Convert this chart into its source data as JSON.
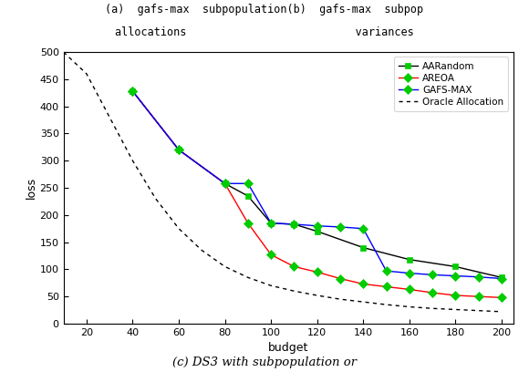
{
  "xlabel": "budget",
  "ylabel": "loss",
  "xlim": [
    10,
    205
  ],
  "ylim": [
    0,
    500
  ],
  "xticks": [
    20,
    40,
    60,
    80,
    100,
    120,
    140,
    160,
    180,
    200
  ],
  "yticks": [
    0,
    50,
    100,
    150,
    200,
    250,
    300,
    350,
    400,
    450,
    500
  ],
  "aarandom": {
    "x": [
      40,
      60,
      80,
      90,
      100,
      110,
      120,
      140,
      160,
      180,
      200
    ],
    "y": [
      428,
      320,
      258,
      235,
      185,
      183,
      170,
      140,
      118,
      105,
      85
    ],
    "color": "#000000",
    "label": "AARandom",
    "marker": "s"
  },
  "areoa": {
    "x": [
      40,
      60,
      80,
      90,
      100,
      110,
      120,
      130,
      140,
      150,
      160,
      170,
      180,
      190,
      200
    ],
    "y": [
      428,
      320,
      258,
      185,
      127,
      105,
      95,
      83,
      73,
      68,
      63,
      57,
      52,
      50,
      48
    ],
    "color": "#ff0000",
    "label": "AREOA",
    "marker": "D"
  },
  "gafsmax": {
    "x": [
      40,
      60,
      80,
      90,
      100,
      110,
      120,
      130,
      140,
      150,
      160,
      170,
      180,
      190,
      200
    ],
    "y": [
      428,
      320,
      258,
      258,
      185,
      183,
      180,
      178,
      175,
      97,
      93,
      90,
      88,
      86,
      83
    ],
    "color": "#0000ff",
    "label": "GAFS-MAX",
    "marker": "D"
  },
  "oracle": {
    "x": [
      10,
      20,
      30,
      40,
      50,
      60,
      70,
      80,
      90,
      100,
      110,
      120,
      130,
      140,
      150,
      160,
      170,
      180,
      190,
      200
    ],
    "y": [
      500,
      460,
      380,
      300,
      230,
      175,
      135,
      105,
      85,
      70,
      60,
      52,
      45,
      40,
      35,
      31,
      28,
      26,
      24,
      22
    ],
    "color": "#000000",
    "label": "Oracle Allocation"
  },
  "marker_color": "#00cc00",
  "marker_size": 5,
  "line_width": 1.0,
  "background_color": "#ffffff",
  "top_line1": "(a)  gafs-max  subpopulation(b)  gafs-max  subpop",
  "top_line2": "allocations                          variances",
  "bottom_text": "(c) DS3 with subpopulation or"
}
